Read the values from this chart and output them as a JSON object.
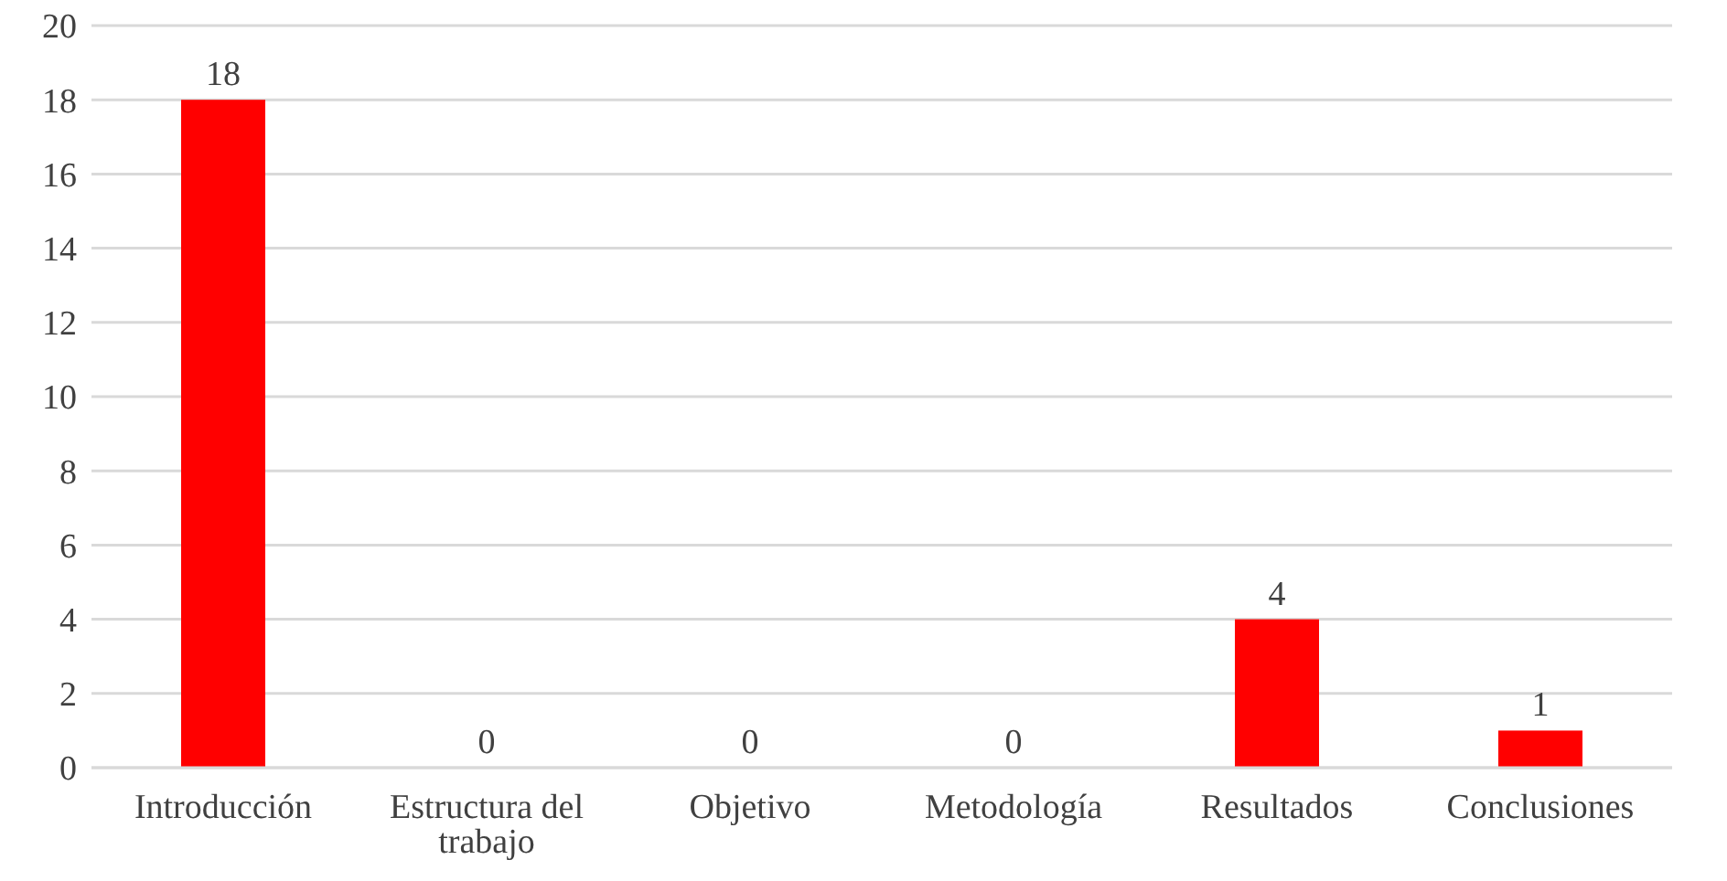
{
  "chart_data": {
    "type": "bar",
    "categories": [
      "Introducción",
      "Estructura del trabajo",
      "Objetivo",
      "Metodología",
      "Resultados",
      "Conclusiones"
    ],
    "values": [
      18,
      0,
      0,
      0,
      4,
      1
    ],
    "color": "#ff0000",
    "ylim": [
      0,
      20
    ],
    "yticks": [
      0,
      2,
      4,
      6,
      8,
      10,
      12,
      14,
      16,
      18,
      20
    ],
    "grid": "y",
    "data_labels": true
  }
}
